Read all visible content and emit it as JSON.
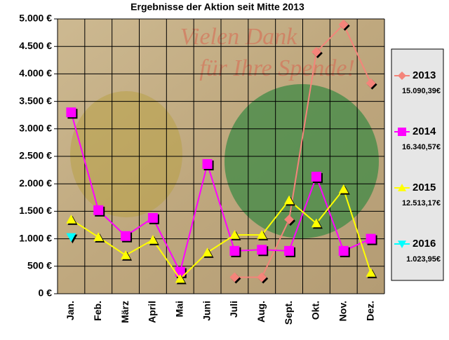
{
  "chart_data": {
    "type": "line",
    "title": "Ergebnisse der Aktion seit Mitte 2013",
    "annotations": [
      "Vielen Dank",
      "für Ihre Spende!"
    ],
    "categories": [
      "Jan.",
      "Feb.",
      "März",
      "April",
      "Mai",
      "Juni",
      "Juli",
      "Aug.",
      "Sept.",
      "Okt.",
      "Nov.",
      "Dez."
    ],
    "series": [
      {
        "name": "2013",
        "total": "15.090,39€",
        "color": "#f4847a",
        "marker": "diamond",
        "values": [
          null,
          null,
          null,
          null,
          null,
          null,
          300,
          300,
          1350,
          4400,
          4900,
          3830
        ]
      },
      {
        "name": "2014",
        "total": "16.340,57€",
        "color": "#ff00ff",
        "marker": "square",
        "values": [
          3300,
          1520,
          1050,
          1380,
          400,
          2360,
          780,
          800,
          780,
          2130,
          780,
          1000
        ]
      },
      {
        "name": "2015",
        "total": "12.513,17€",
        "color": "#ffff00",
        "marker": "triangle-up",
        "values": [
          1350,
          1030,
          700,
          980,
          270,
          750,
          1070,
          1070,
          1700,
          1280,
          1900,
          380
        ]
      },
      {
        "name": "2016",
        "total": "1.023,95€",
        "color": "#00ffff",
        "marker": "triangle-down",
        "values": [
          1030,
          null,
          null,
          null,
          null,
          null,
          null,
          null,
          null,
          null,
          null,
          null
        ]
      }
    ],
    "ylim": [
      0,
      5000
    ],
    "yticks": [
      {
        "value": 0,
        "label": "0 €"
      },
      {
        "value": 500,
        "label": "500 €"
      },
      {
        "value": 1000,
        "label": "1.000 €"
      },
      {
        "value": 1500,
        "label": "1.500 €"
      },
      {
        "value": 2000,
        "label": "2.000 €"
      },
      {
        "value": 2500,
        "label": "2.500 €"
      },
      {
        "value": 3000,
        "label": "3.000 €"
      },
      {
        "value": 3500,
        "label": "3.500 €"
      },
      {
        "value": 4000,
        "label": "4.000 €"
      },
      {
        "value": 4500,
        "label": "4.500 €"
      },
      {
        "value": 5000,
        "label": "5.000 €"
      }
    ],
    "grid": true,
    "legend": "right"
  }
}
